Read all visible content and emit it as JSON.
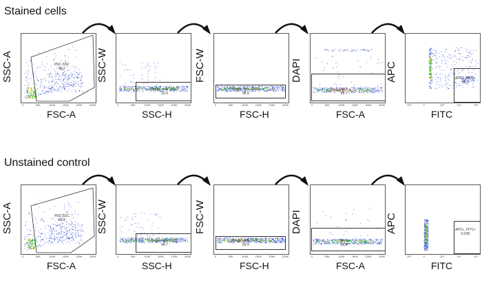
{
  "sections": [
    {
      "title": "Stained cells",
      "plots": [
        {
          "y_label": "SSC-A",
          "x_label": "FSC-A",
          "gate_name": "FSC-SSC",
          "gate_value": "86.2"
        },
        {
          "y_label": "SSC-W",
          "x_label": "SSC-H",
          "gate_name": "Single cells - SSC",
          "gate_value": "93.6"
        },
        {
          "y_label": "FSC-W",
          "x_label": "FSC-H",
          "gate_name": "Single cells - FSC",
          "gate_value": "98.9"
        },
        {
          "y_label": "DAPI",
          "x_label": "FSC-A",
          "gate_name": "DAPI-",
          "gate_value": "82.7"
        },
        {
          "y_label": "APC",
          "x_label": "FITC",
          "gate_name": "APC+, FITC+",
          "gate_value": "33.2"
        }
      ]
    },
    {
      "title": "Unstained control",
      "plots": [
        {
          "y_label": "SSC-A",
          "x_label": "FSC-A",
          "gate_name": "FSC-SSC",
          "gate_value": "88.8"
        },
        {
          "y_label": "SSC-W",
          "x_label": "SSC-H",
          "gate_name": "Single cells - SSC",
          "gate_value": "94.7"
        },
        {
          "y_label": "FSC-W",
          "x_label": "FSC-H",
          "gate_name": "Single cells - FSC",
          "gate_value": "99.9"
        },
        {
          "y_label": "DAPI",
          "x_label": "FSC-A",
          "gate_name": "DAPI-",
          "gate_value": "99.9"
        },
        {
          "y_label": "APC",
          "x_label": "FITC",
          "gate_name": "APC+, FITC+",
          "gate_value": "0.030"
        }
      ]
    }
  ],
  "linear_ticks": [
    "0",
    "50K",
    "100K",
    "150K",
    "200K",
    "250K"
  ],
  "log_ticks": [
    "-10³",
    "0",
    "10³",
    "10⁴",
    "10⁵"
  ],
  "colors": {
    "dots": "#2b46c8",
    "dense_green": "#33c24a",
    "dense_yellow": "#e0d62a",
    "dense_red": "#e03a2a",
    "arrow": "#111111"
  }
}
